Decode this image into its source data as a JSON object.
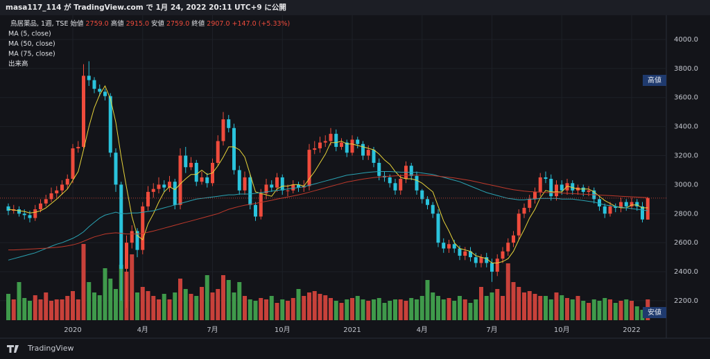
{
  "header": "masa117_114 が TradingView.com で 1月 24, 2022 20:11 UTC+9 に公開",
  "footer": "TradingView",
  "chart_data": {
    "type": "candlestick",
    "legend": {
      "symbol": "鳥居薬品, 1週, TSE",
      "fields": [
        {
          "name": "始値",
          "value": "2759.0"
        },
        {
          "name": "高値",
          "value": "2915.0"
        },
        {
          "name": "安値",
          "value": "2759.0"
        },
        {
          "name": "終値",
          "value": "2907.0"
        }
      ],
      "change": "+147.0 (+5.33%)"
    },
    "high_tag": "高値",
    "low_tag": "安値",
    "up_color": "#ef4b3c",
    "down_color": "#2ac3dc",
    "volume_up_color": "#c8413a",
    "volume_down_color": "#3f9a4b",
    "ylim": [
      2066,
      4167
    ],
    "yticks": [
      {
        "value": 2200,
        "label": "2200.0"
      },
      {
        "value": 2400,
        "label": "2400.0"
      },
      {
        "value": 2600,
        "label": "2600.0"
      },
      {
        "value": 2800,
        "label": "2800.0"
      },
      {
        "value": 3000,
        "label": "3000.0"
      },
      {
        "value": 3200,
        "label": "3200.0"
      },
      {
        "value": 3400,
        "label": "3400.0"
      },
      {
        "value": 3600,
        "label": "3600.0"
      },
      {
        "value": 3800,
        "label": "3800.0"
      },
      {
        "value": 4000,
        "label": "4000.0"
      }
    ],
    "grid": true,
    "categories": [
      null,
      null,
      null,
      null,
      null,
      null,
      null,
      null,
      null,
      null,
      null,
      null,
      "2020",
      null,
      null,
      null,
      null,
      null,
      null,
      null,
      null,
      null,
      null,
      null,
      null,
      "4月",
      null,
      null,
      null,
      null,
      null,
      null,
      null,
      null,
      null,
      null,
      null,
      null,
      "7月",
      null,
      null,
      null,
      null,
      null,
      null,
      null,
      null,
      null,
      null,
      null,
      null,
      "10月",
      null,
      null,
      null,
      null,
      null,
      null,
      null,
      null,
      null,
      null,
      null,
      null,
      "2021",
      null,
      null,
      null,
      null,
      null,
      null,
      null,
      null,
      null,
      null,
      null,
      null,
      "4月",
      null,
      null,
      null,
      null,
      null,
      null,
      null,
      null,
      null,
      null,
      null,
      null,
      "7月",
      null,
      null,
      null,
      null,
      null,
      null,
      null,
      null,
      null,
      null,
      null,
      null,
      "10月",
      null,
      null,
      null,
      null,
      null,
      null,
      null,
      null,
      null,
      null,
      null,
      null,
      "2022",
      null,
      null,
      null
    ],
    "open": [
      2850,
      2820,
      2830,
      2800,
      2790,
      2770,
      2830,
      2870,
      2900,
      2940,
      2960,
      3000,
      3040,
      3250,
      3260,
      3750,
      3720,
      3660,
      3640,
      3610,
      3220,
      3000,
      2420,
      2600,
      2680,
      2550,
      2850,
      2950,
      2970,
      3000,
      2980,
      3020,
      2860,
      3200,
      3120,
      3150,
      3020,
      3050,
      3010,
      3150,
      3300,
      3450,
      3390,
      3100,
      2960,
      3050,
      2860,
      2780,
      2940,
      3000,
      2980,
      3050,
      2960,
      2960,
      3000,
      2980,
      2990,
      3240,
      3250,
      3290,
      3300,
      3350,
      3260,
      3290,
      3220,
      3310,
      3280,
      3200,
      3240,
      3150,
      3060,
      3050,
      3010,
      2960,
      3040,
      3130,
      3060,
      2960,
      2900,
      2860,
      2800,
      2600,
      2560,
      2590,
      2560,
      2510,
      2540,
      2500,
      2460,
      2500,
      2460,
      2400,
      2490,
      2540,
      2600,
      2650,
      2800,
      2840,
      2900,
      2950,
      3050,
      3040,
      2920,
      3000,
      2960,
      3010,
      2960,
      2980,
      2950,
      2960,
      2900,
      2850,
      2800,
      2850,
      2840,
      2880,
      2850,
      2880,
      2850,
      2759
    ],
    "high": [
      2870,
      2860,
      2850,
      2830,
      2820,
      2860,
      2900,
      2930,
      2980,
      2990,
      3030,
      3070,
      3280,
      3300,
      3830,
      3850,
      3740,
      3690,
      3660,
      3630,
      3250,
      3020,
      2650,
      2720,
      2700,
      2880,
      2990,
      3010,
      3050,
      3030,
      3060,
      3040,
      3250,
      3260,
      3190,
      3170,
      3090,
      3080,
      3180,
      3340,
      3500,
      3480,
      3420,
      3130,
      3090,
      3070,
      2880,
      2970,
      3040,
      3030,
      3080,
      3070,
      3000,
      3030,
      3020,
      3030,
      3280,
      3300,
      3330,
      3340,
      3390,
      3380,
      3320,
      3310,
      3340,
      3330,
      3300,
      3270,
      3260,
      3180,
      3090,
      3070,
      3040,
      3070,
      3160,
      3150,
      3090,
      2970,
      2920,
      2880,
      2830,
      2630,
      2620,
      2620,
      2580,
      2570,
      2570,
      2530,
      2520,
      2530,
      2490,
      2520,
      2570,
      2630,
      2680,
      2830,
      2870,
      2930,
      2980,
      3080,
      3090,
      3070,
      3030,
      3030,
      3040,
      3030,
      3000,
      3000,
      2990,
      2980,
      2920,
      2870,
      2880,
      2870,
      2910,
      2900,
      2910,
      2900,
      2880,
      2915
    ],
    "low": [
      2790,
      2800,
      2780,
      2760,
      2740,
      2750,
      2810,
      2850,
      2880,
      2910,
      2930,
      2970,
      3010,
      3220,
      3250,
      3680,
      3630,
      3610,
      3580,
      3190,
      2950,
      2200,
      2150,
      2560,
      2500,
      2520,
      2820,
      2910,
      2940,
      2950,
      2950,
      2830,
      2830,
      3080,
      3100,
      2990,
      3000,
      2980,
      2990,
      3130,
      3270,
      3360,
      3070,
      2930,
      2930,
      2830,
      2750,
      2760,
      2900,
      2950,
      2950,
      2930,
      2920,
      2940,
      2950,
      2950,
      2960,
      3210,
      3220,
      3260,
      3270,
      3230,
      3240,
      3190,
      3200,
      3250,
      3170,
      3170,
      3120,
      3030,
      3020,
      2980,
      2930,
      2930,
      3010,
      3030,
      2930,
      2870,
      2830,
      2770,
      2570,
      2530,
      2530,
      2530,
      2480,
      2480,
      2470,
      2430,
      2430,
      2430,
      2330,
      2370,
      2460,
      2510,
      2570,
      2620,
      2770,
      2810,
      2870,
      2920,
      3010,
      2890,
      2890,
      2930,
      2930,
      2930,
      2930,
      2920,
      2920,
      2870,
      2820,
      2770,
      2780,
      2810,
      2810,
      2820,
      2830,
      2820,
      2740,
      2759
    ],
    "close": [
      2820,
      2830,
      2800,
      2790,
      2770,
      2830,
      2870,
      2900,
      2940,
      2960,
      3000,
      3040,
      3250,
      3260,
      3750,
      3720,
      3660,
      3640,
      3610,
      3220,
      3000,
      2420,
      2600,
      2680,
      2550,
      2850,
      2950,
      2970,
      3000,
      2980,
      3020,
      2860,
      3200,
      3120,
      3150,
      3020,
      3050,
      3010,
      3150,
      3300,
      3450,
      3390,
      3100,
      2960,
      3050,
      2860,
      2780,
      2940,
      3000,
      2980,
      3050,
      2960,
      2960,
      3000,
      2980,
      2990,
      3240,
      3250,
      3290,
      3300,
      3350,
      3260,
      3290,
      3220,
      3310,
      3280,
      3200,
      3240,
      3150,
      3060,
      3050,
      3010,
      2960,
      3040,
      3130,
      3060,
      2960,
      2900,
      2860,
      2800,
      2600,
      2560,
      2590,
      2560,
      2510,
      2540,
      2500,
      2460,
      2500,
      2460,
      2400,
      2490,
      2540,
      2600,
      2650,
      2800,
      2840,
      2900,
      2950,
      3050,
      3040,
      2920,
      3000,
      2960,
      3010,
      2960,
      2980,
      2950,
      2960,
      2900,
      2850,
      2800,
      2850,
      2840,
      2880,
      2850,
      2880,
      2850,
      2760,
      2907
    ],
    "series": [
      {
        "name": "MA (5, close)",
        "color": "#e8d43a",
        "values": [
          2830,
          2825,
          2820,
          2815,
          2805,
          2810,
          2820,
          2840,
          2870,
          2900,
          2935,
          2970,
          3030,
          3090,
          3240,
          3400,
          3530,
          3620,
          3680,
          3590,
          3430,
          3190,
          2980,
          2780,
          2650,
          2620,
          2730,
          2800,
          2880,
          2950,
          2985,
          2965,
          3005,
          3040,
          3070,
          3070,
          3100,
          3070,
          3080,
          3130,
          3190,
          3260,
          3260,
          3240,
          3190,
          3070,
          2950,
          2940,
          2930,
          2920,
          2970,
          2990,
          2990,
          3000,
          3000,
          2990,
          3040,
          3090,
          3150,
          3210,
          3290,
          3290,
          3300,
          3280,
          3280,
          3270,
          3260,
          3250,
          3240,
          3210,
          3170,
          3140,
          3090,
          3050,
          3040,
          3040,
          3030,
          3010,
          2980,
          2950,
          2850,
          2750,
          2680,
          2600,
          2560,
          2550,
          2540,
          2510,
          2500,
          2490,
          2460,
          2460,
          2470,
          2490,
          2540,
          2620,
          2690,
          2770,
          2830,
          2910,
          2960,
          2950,
          2950,
          2950,
          2990,
          2980,
          2970,
          2970,
          2970,
          2950,
          2920,
          2890,
          2870,
          2850,
          2840,
          2840,
          2860,
          2860,
          2840,
          2840
        ]
      },
      {
        "name": "MA (50, close)",
        "color": "#2aa3b3",
        "values": [
          2480,
          2490,
          2500,
          2510,
          2520,
          2530,
          2545,
          2560,
          2575,
          2590,
          2600,
          2615,
          2630,
          2650,
          2675,
          2710,
          2740,
          2770,
          2790,
          2800,
          2810,
          2800,
          2800,
          2805,
          2805,
          2810,
          2815,
          2820,
          2830,
          2840,
          2850,
          2860,
          2870,
          2880,
          2890,
          2900,
          2905,
          2910,
          2915,
          2920,
          2925,
          2930,
          2930,
          2935,
          2935,
          2935,
          2940,
          2945,
          2950,
          2955,
          2960,
          2965,
          2970,
          2975,
          2980,
          2985,
          2995,
          3005,
          3015,
          3025,
          3035,
          3045,
          3055,
          3065,
          3070,
          3075,
          3080,
          3085,
          3088,
          3090,
          3090,
          3090,
          3088,
          3086,
          3085,
          3085,
          3085,
          3080,
          3075,
          3070,
          3060,
          3050,
          3040,
          3030,
          3020,
          3005,
          2990,
          2975,
          2960,
          2945,
          2935,
          2925,
          2915,
          2905,
          2900,
          2895,
          2895,
          2900,
          2900,
          2905,
          2905,
          2905,
          2905,
          2900,
          2900,
          2900,
          2895,
          2890,
          2885,
          2880,
          2870,
          2860,
          2855,
          2850,
          2845,
          2840,
          2835,
          2830,
          2825,
          2820
        ]
      },
      {
        "name": "MA (75, close)",
        "color": "#c0392b",
        "values": [
          2550,
          2550,
          2552,
          2554,
          2556,
          2558,
          2560,
          2562,
          2565,
          2568,
          2572,
          2578,
          2585,
          2595,
          2610,
          2625,
          2640,
          2650,
          2660,
          2665,
          2668,
          2665,
          2660,
          2660,
          2660,
          2665,
          2672,
          2680,
          2690,
          2700,
          2710,
          2720,
          2730,
          2740,
          2750,
          2760,
          2770,
          2780,
          2790,
          2800,
          2815,
          2830,
          2840,
          2850,
          2858,
          2865,
          2870,
          2878,
          2885,
          2892,
          2900,
          2908,
          2915,
          2922,
          2930,
          2938,
          2948,
          2958,
          2968,
          2978,
          2988,
          2998,
          3008,
          3018,
          3025,
          3032,
          3038,
          3044,
          3048,
          3052,
          3056,
          3058,
          3060,
          3062,
          3064,
          3066,
          3066,
          3066,
          3064,
          3062,
          3058,
          3054,
          3050,
          3046,
          3040,
          3034,
          3028,
          3020,
          3012,
          3004,
          2996,
          2988,
          2980,
          2972,
          2965,
          2960,
          2955,
          2952,
          2950,
          2948,
          2946,
          2945,
          2944,
          2942,
          2940,
          2938,
          2936,
          2934,
          2932,
          2930,
          2928,
          2926,
          2924,
          2922,
          2920,
          2918,
          2916,
          2914,
          2912,
          2910
        ]
      }
    ],
    "volume": {
      "name": "出来高",
      "values": [
        38,
        30,
        55,
        32,
        28,
        36,
        30,
        40,
        28,
        30,
        30,
        35,
        42,
        30,
        110,
        55,
        40,
        36,
        75,
        60,
        45,
        80,
        70,
        95,
        40,
        48,
        42,
        35,
        30,
        38,
        30,
        40,
        60,
        45,
        38,
        35,
        48,
        65,
        40,
        45,
        65,
        58,
        40,
        55,
        35,
        30,
        28,
        32,
        30,
        35,
        25,
        30,
        28,
        32,
        45,
        35,
        40,
        42,
        38,
        36,
        32,
        28,
        25,
        30,
        32,
        35,
        30,
        28,
        30,
        32,
        25,
        28,
        30,
        30,
        28,
        32,
        30,
        35,
        58,
        40,
        35,
        30,
        32,
        28,
        35,
        30,
        25,
        30,
        48,
        35,
        40,
        45,
        35,
        82,
        55,
        48,
        40,
        42,
        38,
        35,
        35,
        30,
        40,
        36,
        32,
        30,
        35,
        28,
        25,
        30,
        28,
        32,
        30,
        25,
        28,
        30,
        28,
        20,
        15,
        30
      ]
    }
  }
}
